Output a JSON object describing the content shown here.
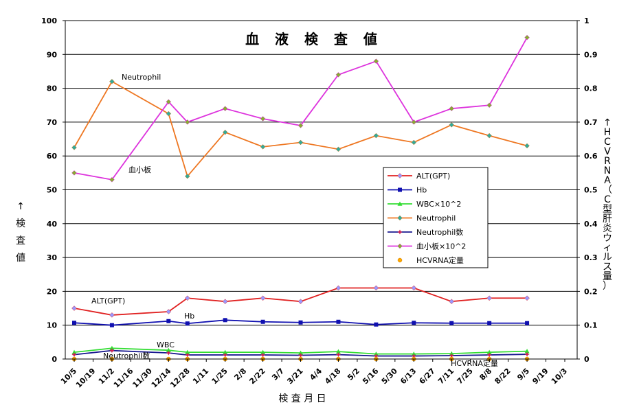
{
  "chart_data": {
    "type": "line",
    "title": "血 液 検 査 値",
    "xlabel": "検 査 月 日",
    "ylabel_chars": [
      "↑",
      "検",
      "査",
      "値"
    ],
    "y2label_chars": [
      "↑",
      "H",
      "C",
      "V",
      "R",
      "N",
      "A",
      "（",
      "C",
      "型",
      "肝",
      "炎",
      "ウ",
      "ィ",
      "ル",
      "ス",
      "量",
      "）"
    ],
    "ylim": [
      0,
      100
    ],
    "y2lim": [
      0,
      1
    ],
    "yticks": [
      "0",
      "10",
      "20",
      "30",
      "40",
      "50",
      "60",
      "70",
      "80",
      "90",
      "100"
    ],
    "y2ticks": [
      "0",
      "0.1",
      "0.2",
      "0.3",
      "0.4",
      "0.5",
      "0.6",
      "0.7",
      "0.8",
      "0.9",
      "1"
    ],
    "categories": [
      "10/5",
      "10/19",
      "11/2",
      "11/16",
      "11/30",
      "12/14",
      "12/28",
      "1/11",
      "1/25",
      "2/8",
      "2/22",
      "3/7",
      "3/21",
      "4/4",
      "4/18",
      "5/2",
      "5/16",
      "5/30",
      "6/13",
      "6/27",
      "7/11",
      "7/25",
      "8/8",
      "8/22",
      "9/5",
      "9/19",
      "10/3"
    ],
    "grid": true,
    "legend_position": "right-middle",
    "series": [
      {
        "name": "ALT(GPT)",
        "color": "#e02020",
        "marker": "diamond",
        "marker_color": "#9999ff",
        "points": [
          [
            0,
            15
          ],
          [
            2,
            13
          ],
          [
            5,
            14
          ],
          [
            6,
            18
          ],
          [
            8,
            17
          ],
          [
            10,
            18
          ],
          [
            12,
            17
          ],
          [
            14,
            21
          ],
          [
            16,
            21
          ],
          [
            18,
            21
          ],
          [
            20,
            17
          ],
          [
            22,
            18
          ],
          [
            24,
            18
          ]
        ]
      },
      {
        "name": "Hb",
        "color": "#1010b0",
        "marker": "square",
        "marker_color": "#1010b0",
        "points": [
          [
            0,
            10.7
          ],
          [
            2,
            10
          ],
          [
            5,
            11.2
          ],
          [
            6,
            10.5
          ],
          [
            8,
            11.5
          ],
          [
            10,
            11
          ],
          [
            12,
            10.8
          ],
          [
            14,
            11
          ],
          [
            16,
            10.2
          ],
          [
            18,
            10.7
          ],
          [
            20,
            10.6
          ],
          [
            22,
            10.6
          ],
          [
            24,
            10.6
          ]
        ]
      },
      {
        "name": "WBC×10^2",
        "color": "#33dd33",
        "marker": "triangle",
        "marker_color": "#33dd33",
        "points": [
          [
            0,
            2
          ],
          [
            2,
            3.2
          ],
          [
            5,
            2.6
          ],
          [
            6,
            2
          ],
          [
            8,
            2
          ],
          [
            10,
            2
          ],
          [
            12,
            1.8
          ],
          [
            14,
            2.2
          ],
          [
            16,
            1.5
          ],
          [
            18,
            1.5
          ],
          [
            20,
            1.6
          ],
          [
            22,
            2
          ],
          [
            24,
            2.3
          ]
        ]
      },
      {
        "name": "Neutrophil",
        "color": "#ee7722",
        "marker": "diamond",
        "marker_color": "#33aa99",
        "points": [
          [
            0,
            62.5
          ],
          [
            2,
            82
          ],
          [
            5,
            72.5
          ],
          [
            6,
            54
          ],
          [
            8,
            67
          ],
          [
            10,
            62.7
          ],
          [
            12,
            64
          ],
          [
            14,
            62
          ],
          [
            16,
            66
          ],
          [
            18,
            64
          ],
          [
            20,
            69.2
          ],
          [
            22,
            66
          ],
          [
            24,
            63
          ]
        ]
      },
      {
        "name": "Neutrophil数",
        "color": "#1a1a90",
        "marker": "star",
        "marker_color": "#cc2255",
        "points": [
          [
            0,
            1.3
          ],
          [
            2,
            2.5
          ],
          [
            5,
            1.8
          ],
          [
            6,
            1.2
          ],
          [
            8,
            1.2
          ],
          [
            10,
            1.2
          ],
          [
            12,
            1.1
          ],
          [
            14,
            1.3
          ],
          [
            16,
            0.9
          ],
          [
            18,
            0.9
          ],
          [
            20,
            1
          ],
          [
            22,
            1.2
          ],
          [
            24,
            1.4
          ]
        ]
      },
      {
        "name": "血小板×10^2",
        "color": "#dd33dd",
        "marker": "diamond",
        "marker_color": "#88aa33",
        "points": [
          [
            0,
            55
          ],
          [
            2,
            53
          ],
          [
            5,
            76
          ],
          [
            6,
            70
          ],
          [
            8,
            74
          ],
          [
            10,
            71
          ],
          [
            12,
            69
          ],
          [
            14,
            84
          ],
          [
            16,
            88
          ],
          [
            18,
            70
          ],
          [
            20,
            74
          ],
          [
            22,
            75
          ],
          [
            24,
            95
          ]
        ]
      },
      {
        "name": "HCVRNA定量",
        "color": "#ff8800",
        "marker": "circle",
        "marker_color": "#ffaa00",
        "line": false,
        "points": [
          [
            0,
            0
          ],
          [
            2,
            0
          ],
          [
            5,
            0
          ],
          [
            6,
            0
          ],
          [
            8,
            0
          ],
          [
            10,
            0
          ],
          [
            12,
            0
          ],
          [
            14,
            0
          ],
          [
            16,
            0
          ],
          [
            18,
            0
          ],
          [
            20,
            0
          ],
          [
            22,
            0
          ],
          [
            24,
            0
          ]
        ]
      }
    ],
    "annotations": [
      {
        "text": "Neutrophil",
        "series": "Neutrophil"
      },
      {
        "text": "血小板",
        "series": "血小板×10^2"
      },
      {
        "text": "ALT(GPT)",
        "series": "ALT(GPT)"
      },
      {
        "text": "Hb",
        "series": "Hb"
      },
      {
        "text": "WBC",
        "series": "WBC×10^2"
      },
      {
        "text": "Neutrophil数",
        "series": "Neutrophil数"
      },
      {
        "text": "HCVRNA定量",
        "series": "HCVRNA定量"
      }
    ]
  }
}
